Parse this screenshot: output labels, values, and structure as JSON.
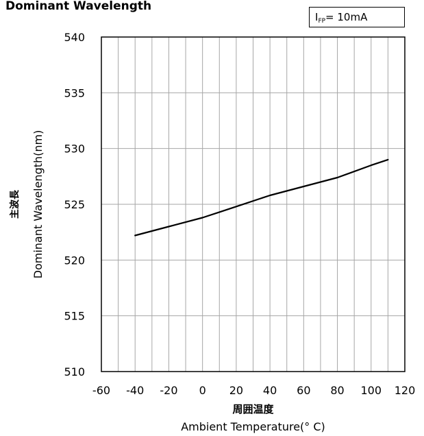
{
  "chart_data": {
    "type": "line",
    "title": "Dominant Wavelength",
    "condition": {
      "symbol": "I",
      "subscript": "FP",
      "value": "= 10mA"
    },
    "xlabel": "Ambient Temperature(° C)",
    "xlabel_ja": "周囲温度",
    "ylabel": "Dominant Wavelength(nm)",
    "ylabel_ja": "主波長",
    "xlim": [
      -60,
      120
    ],
    "ylim": [
      510,
      540
    ],
    "x_ticks": [
      -60,
      -40,
      -20,
      0,
      20,
      40,
      60,
      80,
      100,
      120
    ],
    "y_ticks": [
      510,
      515,
      520,
      525,
      530,
      535,
      540
    ],
    "x_grid": [
      -50,
      -40,
      -30,
      -20,
      -10,
      0,
      10,
      20,
      30,
      40,
      50,
      60,
      70,
      80,
      90,
      100,
      110
    ],
    "grid": true,
    "series": [
      {
        "x": [
          -40,
          -20,
          0,
          10,
          20,
          40,
          60,
          80,
          100,
          110
        ],
        "y": [
          522.2,
          523.0,
          523.8,
          524.3,
          524.8,
          525.8,
          526.6,
          527.4,
          528.5,
          529.0
        ]
      }
    ],
    "colors": {
      "line": "#000000",
      "grid": "#a6a6a6",
      "title": "#2e6fd1"
    }
  }
}
